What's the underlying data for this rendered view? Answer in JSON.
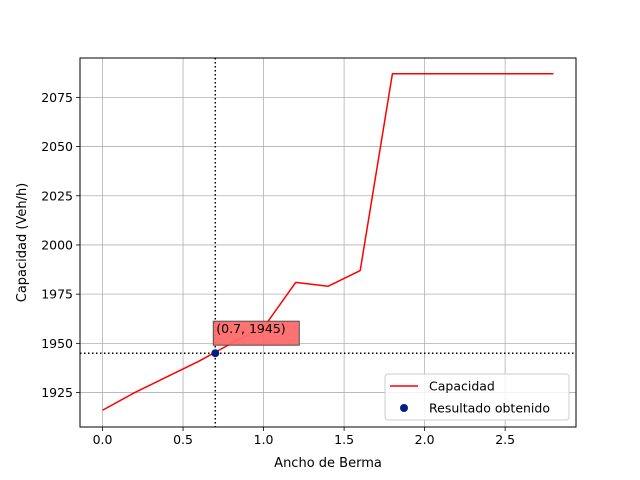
{
  "chart_data": {
    "type": "line",
    "title": "",
    "xlabel": "Ancho de Berma",
    "ylabel": "Capacidad (Veh/h)",
    "xlim": [
      -0.14,
      2.94
    ],
    "ylim": [
      1907.5,
      2095
    ],
    "xticks": [
      0.0,
      0.5,
      1.0,
      1.5,
      2.0,
      2.5
    ],
    "xtick_labels": [
      "0.0",
      "0.5",
      "1.0",
      "1.5",
      "2.0",
      "2.5"
    ],
    "yticks": [
      1925,
      1950,
      1975,
      2000,
      2025,
      2050,
      2075
    ],
    "ytick_labels": [
      "1925",
      "1950",
      "1975",
      "2000",
      "2025",
      "2050",
      "2075"
    ],
    "grid": true,
    "series": [
      {
        "name": "Capacidad",
        "color": "#ff0000",
        "x": [
          0.0,
          0.2,
          0.4,
          0.6,
          0.8,
          1.0,
          1.2,
          1.4,
          1.6,
          1.8,
          2.0,
          2.2,
          2.4,
          2.6,
          2.8
        ],
        "y": [
          1916,
          1925,
          1933,
          1941,
          1950,
          1958,
          1981,
          1979,
          1987,
          2087,
          2087,
          2087,
          2087,
          2087,
          2087
        ]
      }
    ],
    "point": {
      "name": "Resultado obtenido",
      "color": "#00208a",
      "x": 0.7,
      "y": 1945
    },
    "annotation": {
      "text": "(0.7, 1945)",
      "background": "#ff6b6b"
    },
    "reference_lines": {
      "vertical_x": 0.7,
      "horizontal_y": 1945,
      "style": "dotted",
      "color": "#000000"
    },
    "legend": {
      "placement": "lower right",
      "entries": [
        "Capacidad",
        "Resultado obtenido"
      ]
    }
  }
}
